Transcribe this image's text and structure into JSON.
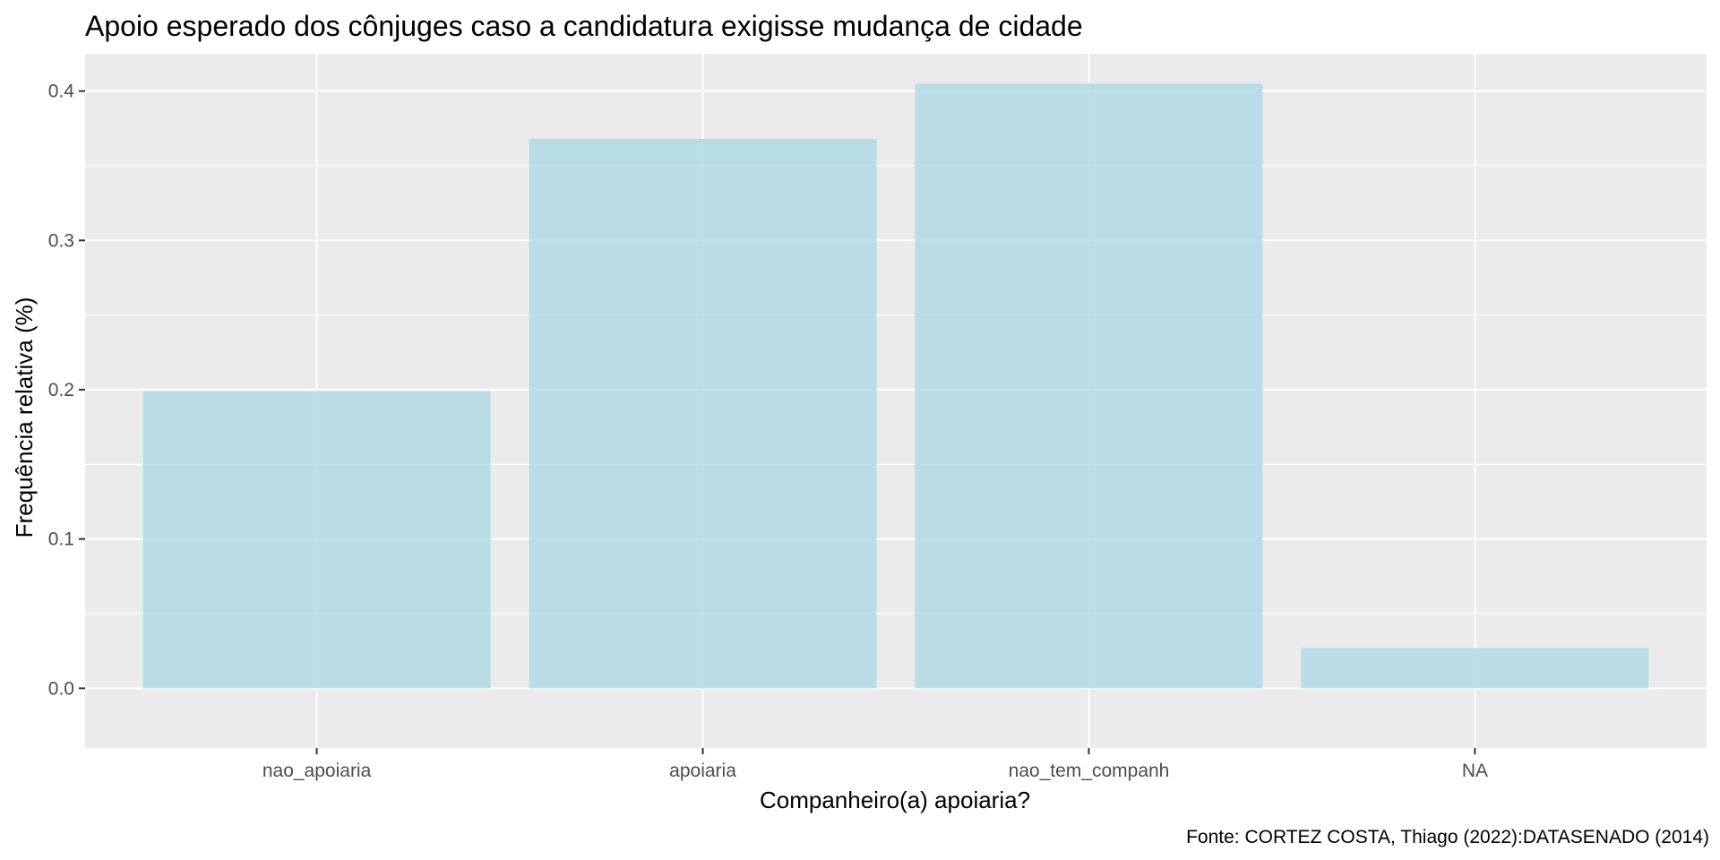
{
  "chart_data": {
    "type": "bar",
    "title": "Apoio esperado dos cônjuges caso a candidatura exigisse mudança de cidade",
    "xlabel": "Companheiro(a) apoiaria?",
    "ylabel": "Frequência relativa (%)",
    "caption": "Fonte: CORTEZ COSTA, Thiago (2022):DATASENADO (2014)",
    "categories": [
      "nao_apoiaria",
      "apoiaria",
      "nao_tem_companh",
      "NA"
    ],
    "values": [
      0.199,
      0.368,
      0.405,
      0.027
    ],
    "ylim": [
      -0.04,
      0.425
    ],
    "yticks": [
      0.0,
      0.1,
      0.2,
      0.3,
      0.4
    ],
    "ytick_labels": [
      "0.0",
      "0.1",
      "0.2",
      "0.3",
      "0.4"
    ],
    "grid": true,
    "colors": {
      "bar": "#ADD8E6",
      "panel": "#EBEBEB",
      "grid": "#FFFFFF"
    }
  }
}
